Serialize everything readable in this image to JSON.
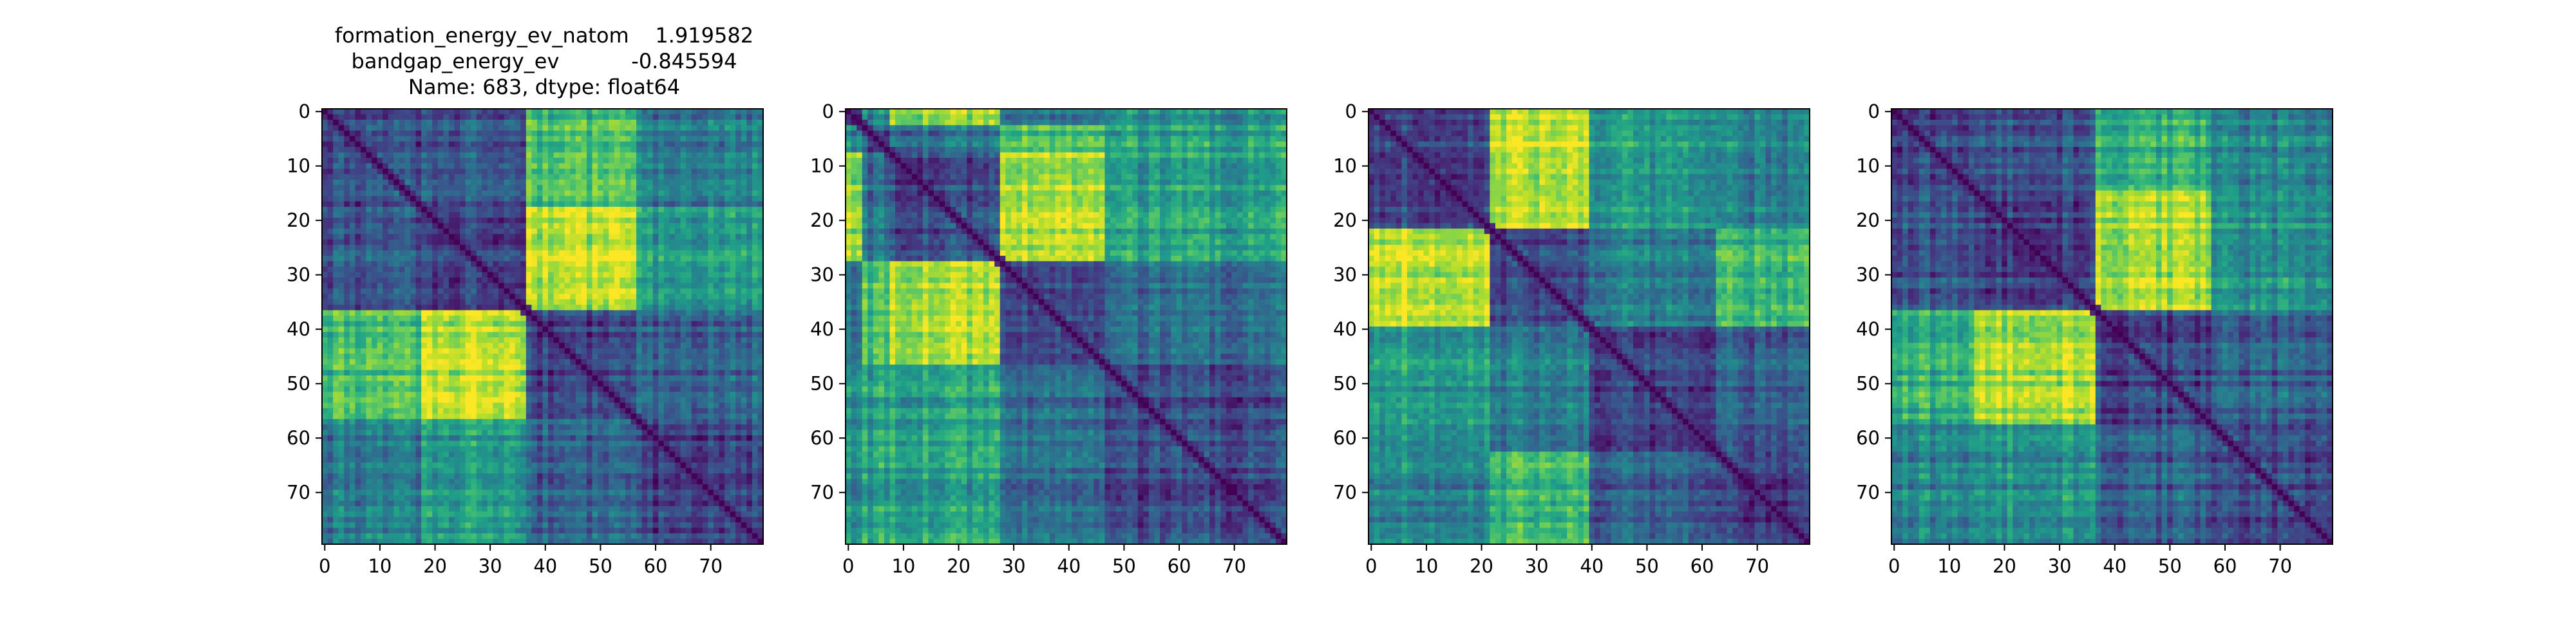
{
  "figure": {
    "title_lines": [
      "formation_energy_ev_natom    1.919582",
      "bandgap_energy_ev           -0.845594",
      "Name: 683, dtype: float64"
    ]
  },
  "colormap": [
    "#440154",
    "#482878",
    "#3e4989",
    "#31688e",
    "#26828e",
    "#1f9e89",
    "#35b779",
    "#6ece58",
    "#b5de2b",
    "#fde725"
  ],
  "chart_data": [
    {
      "type": "heatmap",
      "size": 80,
      "title": "",
      "xlabel": "",
      "ylabel": "",
      "xticks": [
        0,
        10,
        20,
        30,
        40,
        50,
        60,
        70
      ],
      "yticks": [
        0,
        10,
        20,
        30,
        40,
        50,
        60,
        70
      ],
      "block_boundaries": [
        0,
        18,
        37,
        57,
        80
      ],
      "block_means": [
        [
          0.22,
          0.26,
          0.68,
          0.4
        ],
        [
          0.26,
          0.2,
          0.9,
          0.55
        ],
        [
          0.68,
          0.9,
          0.18,
          0.3
        ],
        [
          0.4,
          0.55,
          0.3,
          0.2
        ]
      ],
      "diagonal_value": 0.0
    },
    {
      "type": "heatmap",
      "size": 80,
      "title": "",
      "xlabel": "",
      "ylabel": "",
      "xticks": [
        0,
        10,
        20,
        30,
        40,
        50,
        60,
        70
      ],
      "yticks": [
        0,
        10,
        20,
        30,
        40,
        50,
        60,
        70
      ],
      "block_boundaries": [
        0,
        3,
        8,
        28,
        47,
        80
      ],
      "block_means": [
        [
          0.2,
          0.5,
          0.85,
          0.4,
          0.5
        ],
        [
          0.5,
          0.2,
          0.35,
          0.7,
          0.55
        ],
        [
          0.85,
          0.35,
          0.2,
          0.85,
          0.55
        ],
        [
          0.4,
          0.7,
          0.85,
          0.2,
          0.35
        ],
        [
          0.5,
          0.55,
          0.55,
          0.35,
          0.2
        ]
      ],
      "diagonal_value": 0.0
    },
    {
      "type": "heatmap",
      "size": 80,
      "title": "",
      "xlabel": "",
      "ylabel": "",
      "xticks": [
        0,
        10,
        20,
        30,
        40,
        50,
        60,
        70
      ],
      "yticks": [
        0,
        10,
        20,
        30,
        40,
        50,
        60,
        70
      ],
      "block_boundaries": [
        0,
        22,
        40,
        63,
        80
      ],
      "block_means": [
        [
          0.22,
          0.9,
          0.55,
          0.45
        ],
        [
          0.9,
          0.2,
          0.4,
          0.65
        ],
        [
          0.55,
          0.4,
          0.2,
          0.3
        ],
        [
          0.45,
          0.65,
          0.3,
          0.18
        ]
      ],
      "diagonal_value": 0.0
    },
    {
      "type": "heatmap",
      "size": 80,
      "title": "",
      "xlabel": "",
      "ylabel": "",
      "xticks": [
        0,
        10,
        20,
        30,
        40,
        50,
        60,
        70
      ],
      "yticks": [
        0,
        10,
        20,
        30,
        40,
        50,
        60,
        70
      ],
      "block_boundaries": [
        0,
        15,
        37,
        58,
        80
      ],
      "block_means": [
        [
          0.22,
          0.28,
          0.65,
          0.45
        ],
        [
          0.28,
          0.2,
          0.88,
          0.5
        ],
        [
          0.65,
          0.88,
          0.2,
          0.3
        ],
        [
          0.45,
          0.5,
          0.3,
          0.2
        ]
      ],
      "diagonal_value": 0.0
    }
  ]
}
